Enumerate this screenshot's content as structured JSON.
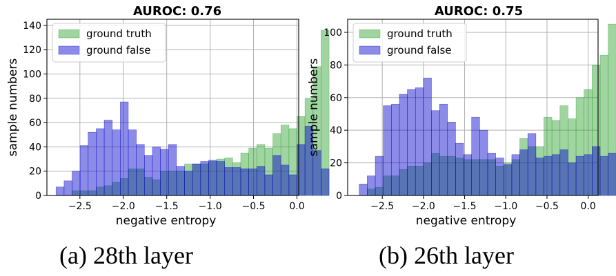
{
  "colors": {
    "truth": "#2ca02c",
    "false": "#0000cc",
    "grid": "#b0b0b0"
  },
  "captions": [
    "(a) 28th layer",
    "(b) 26th layer"
  ],
  "chart_data": [
    {
      "type": "bar",
      "title": "AUROC: 0.76",
      "xlabel": "negative entropy",
      "ylabel": "sample numbers",
      "xlim": [
        -2.88,
        0.02
      ],
      "ylim": [
        0,
        145
      ],
      "xticks": [
        -2.5,
        -2.0,
        -1.5,
        -1.0,
        -0.5,
        0.0
      ],
      "xtick_labels": [
        "−2.5",
        "−2.0",
        "−1.5",
        "−1.0",
        "−0.5",
        "0.0"
      ],
      "yticks": [
        0,
        20,
        40,
        60,
        80,
        100,
        120,
        140
      ],
      "ytick_labels": [
        "0",
        "20",
        "40",
        "60",
        "80",
        "100",
        "120",
        "140"
      ],
      "grid": true,
      "legend": "top-left",
      "bin_start": -2.775,
      "bin_width": 0.0925,
      "series": [
        {
          "name": "ground truth",
          "values": [
            0,
            0,
            4,
            4,
            4,
            7,
            8,
            11,
            14,
            22,
            22,
            15,
            13,
            20,
            20,
            20,
            26,
            26,
            26,
            28,
            30,
            31,
            27,
            35,
            39,
            42,
            39,
            51,
            58,
            55,
            65,
            80,
            106,
            136
          ]
        },
        {
          "name": "ground false",
          "values": [
            7,
            12,
            20,
            41,
            52,
            55,
            62,
            54,
            77,
            54,
            42,
            33,
            40,
            38,
            42,
            24,
            20,
            26,
            28,
            29,
            28,
            23,
            23,
            22,
            22,
            24,
            17,
            33,
            25,
            17,
            42,
            57,
            37,
            22
          ]
        }
      ]
    },
    {
      "type": "bar",
      "title": "AUROC: 0.75",
      "xlabel": "negative entropy",
      "ylabel": "sample numbers",
      "xlim": [
        -2.92,
        0.12
      ],
      "ylim": [
        0,
        108
      ],
      "xticks": [
        -2.5,
        -2.0,
        -1.5,
        -1.0,
        -0.5,
        0.0
      ],
      "xtick_labels": [
        "−2.5",
        "−2.0",
        "−1.5",
        "−1.0",
        "−0.5",
        "0.0"
      ],
      "yticks": [
        0,
        20,
        40,
        60,
        80,
        100
      ],
      "ytick_labels": [
        "0",
        "20",
        "40",
        "60",
        "80",
        "100"
      ],
      "grid": true,
      "legend": "top-left",
      "bin_start": -2.78,
      "bin_width": 0.0975,
      "series": [
        {
          "name": "ground truth",
          "values": [
            0,
            4,
            5,
            12,
            12,
            16,
            18,
            18,
            20,
            26,
            24,
            24,
            23,
            22,
            22,
            22,
            22,
            18,
            20,
            22,
            35,
            30,
            30,
            48,
            46,
            55,
            47,
            60,
            65,
            80,
            86,
            105,
            96
          ]
        },
        {
          "name": "ground false",
          "values": [
            7,
            12,
            24,
            55,
            56,
            62,
            65,
            66,
            72,
            52,
            56,
            45,
            32,
            25,
            48,
            40,
            26,
            23,
            19,
            25,
            28,
            38,
            23,
            24,
            25,
            28,
            20,
            24,
            25,
            30,
            24,
            26,
            32
          ]
        }
      ]
    }
  ]
}
